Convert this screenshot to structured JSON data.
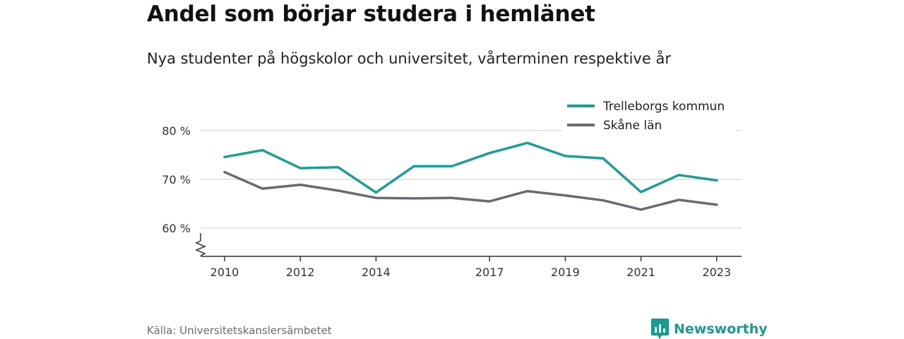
{
  "title": "Andel som börjar studera i hemlänet",
  "subtitle": "Nya studenter på högskolor och universitet, vårterminen respektive år",
  "source": "Källa: Universitetskanslersämbetet",
  "brand": {
    "name": "Newsworthy",
    "icon": "newsworthy-logo-icon",
    "color": "#1a9a93"
  },
  "chart_data": {
    "type": "line",
    "title": "Andel som börjar studera i hemlänet",
    "subtitle": "Nya studenter på högskolor och universitet, vårterminen respektive år",
    "x": [
      2010,
      2011,
      2012,
      2013,
      2014,
      2015,
      2016,
      2017,
      2018,
      2019,
      2020,
      2021,
      2022,
      2023
    ],
    "x_ticks": [
      2010,
      2012,
      2014,
      2017,
      2019,
      2021,
      2023
    ],
    "y_ticks": [
      60,
      70,
      80
    ],
    "y_tick_labels": [
      "60 %",
      "70 %",
      "80 %"
    ],
    "ylim": [
      55,
      82
    ],
    "y_axis_break": true,
    "grid": true,
    "legend_position": "top-right",
    "series": [
      {
        "name": "Trelleborgs kommun",
        "color": "#1a9f96",
        "values": [
          74.6,
          76.0,
          72.3,
          72.5,
          67.3,
          72.7,
          72.7,
          75.4,
          77.5,
          74.8,
          74.3,
          67.4,
          70.9,
          69.8
        ]
      },
      {
        "name": "Skåne län",
        "color": "#6b6a73",
        "values": [
          71.5,
          68.1,
          68.9,
          67.7,
          66.2,
          66.1,
          66.2,
          65.5,
          67.6,
          66.7,
          65.7,
          63.8,
          65.8,
          64.8
        ]
      }
    ]
  }
}
